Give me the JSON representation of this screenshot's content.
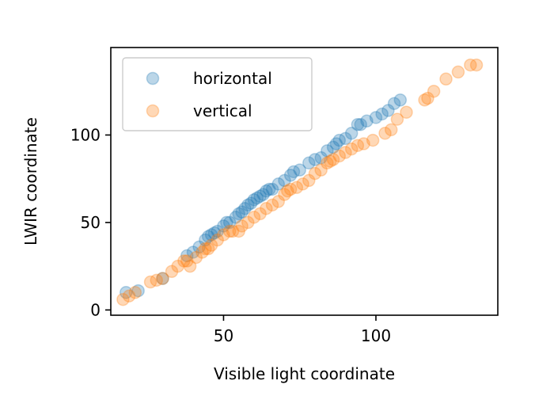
{
  "chart_data": {
    "type": "scatter",
    "title": "",
    "xlabel": "Visible light coordinate",
    "ylabel": "LWIR coordinate",
    "xlim": [
      13,
      140
    ],
    "ylim": [
      -3,
      150
    ],
    "xticks": [
      50,
      100
    ],
    "yticks": [
      0,
      50,
      100
    ],
    "grid": false,
    "legend_position": "top-left",
    "series": [
      {
        "name": "horizontal",
        "color": "#1f77b4",
        "alpha": 0.3,
        "points": [
          [
            18,
            10
          ],
          [
            22,
            11
          ],
          [
            30,
            18
          ],
          [
            38,
            31
          ],
          [
            40,
            33
          ],
          [
            42,
            36
          ],
          [
            44,
            40
          ],
          [
            45,
            42
          ],
          [
            46,
            43
          ],
          [
            47,
            44
          ],
          [
            48,
            45
          ],
          [
            50,
            48
          ],
          [
            51,
            50
          ],
          [
            52,
            50
          ],
          [
            54,
            53
          ],
          [
            55,
            55
          ],
          [
            56,
            56
          ],
          [
            57,
            58
          ],
          [
            58,
            60
          ],
          [
            59,
            61
          ],
          [
            60,
            63
          ],
          [
            61,
            64
          ],
          [
            62,
            65
          ],
          [
            63,
            66
          ],
          [
            64,
            68
          ],
          [
            65,
            69
          ],
          [
            66,
            69
          ],
          [
            68,
            72
          ],
          [
            70,
            74
          ],
          [
            72,
            77
          ],
          [
            73,
            79
          ],
          [
            75,
            80
          ],
          [
            78,
            84
          ],
          [
            80,
            86
          ],
          [
            82,
            87
          ],
          [
            84,
            91
          ],
          [
            86,
            93
          ],
          [
            87,
            95
          ],
          [
            88,
            97
          ],
          [
            90,
            98
          ],
          [
            92,
            101
          ],
          [
            94,
            106
          ],
          [
            95,
            106
          ],
          [
            97,
            108
          ],
          [
            100,
            110
          ],
          [
            102,
            112
          ],
          [
            104,
            114
          ],
          [
            106,
            118
          ],
          [
            108,
            120
          ]
        ]
      },
      {
        "name": "vertical",
        "color": "#ff7f0e",
        "alpha": 0.3,
        "points": [
          [
            17,
            6
          ],
          [
            19,
            8
          ],
          [
            21,
            10
          ],
          [
            26,
            16
          ],
          [
            28,
            17
          ],
          [
            30,
            18
          ],
          [
            33,
            22
          ],
          [
            35,
            25
          ],
          [
            37,
            28
          ],
          [
            38,
            28
          ],
          [
            39,
            25
          ],
          [
            41,
            30
          ],
          [
            43,
            33
          ],
          [
            44,
            35
          ],
          [
            45,
            35
          ],
          [
            46,
            37
          ],
          [
            48,
            40
          ],
          [
            50,
            43
          ],
          [
            52,
            45
          ],
          [
            53,
            45
          ],
          [
            55,
            45
          ],
          [
            56,
            48
          ],
          [
            58,
            50
          ],
          [
            60,
            53
          ],
          [
            62,
            55
          ],
          [
            64,
            58
          ],
          [
            66,
            60
          ],
          [
            68,
            62
          ],
          [
            70,
            66
          ],
          [
            71,
            68
          ],
          [
            72,
            69
          ],
          [
            74,
            70
          ],
          [
            76,
            72
          ],
          [
            78,
            74
          ],
          [
            80,
            78
          ],
          [
            82,
            80
          ],
          [
            84,
            84
          ],
          [
            85,
            85
          ],
          [
            86,
            86
          ],
          [
            88,
            88
          ],
          [
            90,
            90
          ],
          [
            92,
            92
          ],
          [
            94,
            94
          ],
          [
            96,
            95
          ],
          [
            99,
            97
          ],
          [
            103,
            101
          ],
          [
            105,
            103
          ],
          [
            107,
            109
          ],
          [
            110,
            113
          ],
          [
            116,
            120
          ],
          [
            117,
            121
          ],
          [
            119,
            125
          ],
          [
            123,
            132
          ],
          [
            127,
            136
          ],
          [
            131,
            140
          ],
          [
            133,
            140
          ]
        ]
      }
    ]
  }
}
